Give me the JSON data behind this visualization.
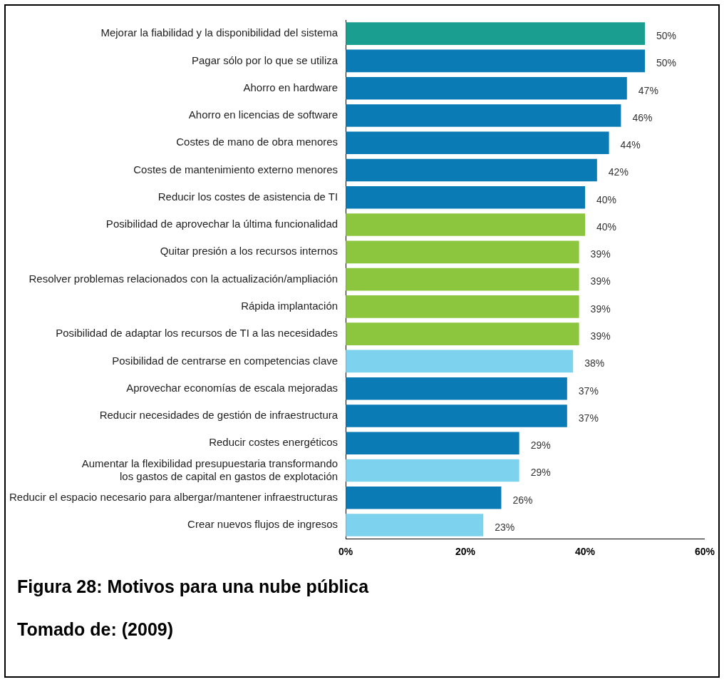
{
  "chart_data": {
    "type": "bar",
    "orientation": "horizontal",
    "title": "Figura 28: Motivos para una nube pública",
    "annotations": [
      "Tomado de: (2009)"
    ],
    "categories": [
      "Mejorar la fiabilidad y la disponibilidad del sistema",
      "Pagar sólo por lo que se utiliza",
      "Ahorro en hardware",
      "Ahorro en licencias de software",
      "Costes de mano de obra menores",
      "Costes de mantenimiento externo menores",
      "Reducir los costes de asistencia de TI",
      "Posibilidad de aprovechar la última funcionalidad",
      "Quitar presión a los recursos internos",
      "Resolver problemas relacionados con la actualización/ampliación",
      "Rápida implantación",
      "Posibilidad de adaptar los recursos de TI a las necesidades",
      "Posibilidad de centrarse en competencias clave",
      "Aprovechar economías de escala mejoradas",
      "Reducir necesidades de gestión de infraestructura",
      "Reducir costes energéticos",
      "Aumentar la flexibilidad presupuestaria transformando\nlos gastos de capital en gastos de explotación",
      "Reducir el espacio necesario para albergar/mantener infraestructuras",
      "Crear nuevos flujos de ingresos"
    ],
    "values": [
      50,
      50,
      47,
      46,
      44,
      42,
      40,
      40,
      39,
      39,
      39,
      39,
      38,
      37,
      37,
      29,
      29,
      26,
      23
    ],
    "value_labels": [
      "50%",
      "50%",
      "47%",
      "46%",
      "44%",
      "42%",
      "40%",
      "40%",
      "39%",
      "39%",
      "39%",
      "39%",
      "38%",
      "37%",
      "37%",
      "29%",
      "29%",
      "26%",
      "23%"
    ],
    "colors": [
      "#1a9e8f",
      "#0a7bb5",
      "#0a7bb5",
      "#0a7bb5",
      "#0a7bb5",
      "#0a7bb5",
      "#0a7bb5",
      "#8cc63f",
      "#8cc63f",
      "#8cc63f",
      "#8cc63f",
      "#8cc63f",
      "#7dd3ee",
      "#0a7bb5",
      "#0a7bb5",
      "#0a7bb5",
      "#7dd3ee",
      "#0a7bb5",
      "#7dd3ee"
    ],
    "xlim": [
      0,
      60
    ],
    "xticks": [
      {
        "value": 0,
        "label": "0%"
      },
      {
        "value": 20,
        "label": "20%"
      },
      {
        "value": 40,
        "label": "40%"
      },
      {
        "value": 60,
        "label": "60%"
      }
    ],
    "grid": false,
    "legend": false
  }
}
